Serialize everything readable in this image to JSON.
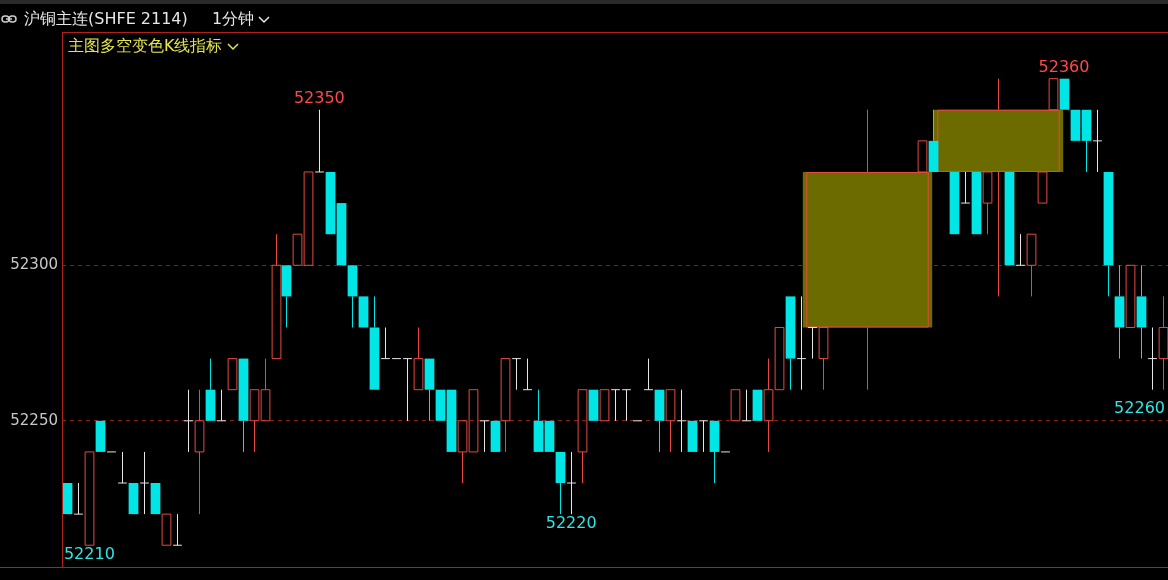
{
  "chart_data": {
    "type": "candlestick",
    "title": "沪铜主连(SHFE 2114)",
    "subtitle": "1分钟",
    "categories": [
      null,
      null,
      null,
      null,
      null,
      null,
      null,
      null,
      null,
      null,
      null,
      null,
      null,
      null,
      null,
      null,
      null,
      null,
      null,
      null,
      null,
      null,
      null,
      null,
      null,
      null,
      null,
      null,
      null,
      null,
      null,
      null,
      null,
      null,
      null,
      null,
      null,
      null,
      null,
      null,
      null,
      null,
      null,
      null,
      null,
      null,
      null,
      null,
      null,
      null,
      null,
      null,
      null,
      null,
      null,
      null,
      null,
      null,
      null,
      null,
      null,
      null,
      null,
      null,
      null,
      null,
      null,
      null,
      null,
      null,
      null,
      null,
      null,
      null,
      null,
      null,
      null,
      null,
      null,
      null,
      null,
      null,
      null,
      null,
      null,
      null,
      null,
      null,
      null,
      null,
      null,
      null,
      null,
      null,
      null,
      null,
      null,
      null,
      null,
      null,
      null
    ],
    "ohlc": [
      [
        52230,
        52230,
        52220,
        52220
      ],
      [
        52220,
        52230,
        52220,
        52220
      ],
      [
        52210,
        52240,
        52210,
        52240
      ],
      [
        52250,
        52250,
        52240,
        52240
      ],
      [
        52240,
        52240,
        52240,
        52240
      ],
      [
        52230,
        52240,
        52230,
        52230
      ],
      [
        52230,
        52230,
        52220,
        52220
      ],
      [
        52230,
        52240,
        52220,
        52230
      ],
      [
        52230,
        52230,
        52220,
        52220
      ],
      [
        52210,
        52220,
        52210,
        52220
      ],
      [
        52210,
        52220,
        52210,
        52210
      ],
      [
        52250,
        52260,
        52240,
        52250
      ],
      [
        52240,
        52260,
        52220,
        52250
      ],
      [
        52260,
        52270,
        52250,
        52250
      ],
      [
        52250,
        52260,
        52250,
        52250
      ],
      [
        52260,
        52270,
        52260,
        52270
      ],
      [
        52270,
        52270,
        52240,
        52250
      ],
      [
        52250,
        52260,
        52240,
        52260
      ],
      [
        52250,
        52270,
        52250,
        52260
      ],
      [
        52270,
        52310,
        52270,
        52300
      ],
      [
        52300,
        52300,
        52280,
        52290
      ],
      [
        52300,
        52310,
        52300,
        52310
      ],
      [
        52300,
        52330,
        52300,
        52330
      ],
      [
        52330,
        52350,
        52330,
        52330
      ],
      [
        52330,
        52330,
        52310,
        52310
      ],
      [
        52320,
        52320,
        52300,
        52300
      ],
      [
        52300,
        52300,
        52280,
        52290
      ],
      [
        52290,
        52290,
        52280,
        52280
      ],
      [
        52280,
        52290,
        52260,
        52260
      ],
      [
        52270,
        52280,
        52270,
        52270
      ],
      [
        52270,
        52270,
        52270,
        52270
      ],
      [
        52270,
        52270,
        52250,
        52270
      ],
      [
        52260,
        52280,
        52260,
        52270
      ],
      [
        52270,
        52270,
        52250,
        52260
      ],
      [
        52260,
        52260,
        52250,
        52250
      ],
      [
        52260,
        52260,
        52240,
        52240
      ],
      [
        52240,
        52250,
        52230,
        52250
      ],
      [
        52240,
        52260,
        52240,
        52260
      ],
      [
        52250,
        52250,
        52240,
        52250
      ],
      [
        52250,
        52250,
        52240,
        52240
      ],
      [
        52250,
        52270,
        52240,
        52270
      ],
      [
        52270,
        52270,
        52260,
        52270
      ],
      [
        52260,
        52270,
        52260,
        52260
      ],
      [
        52250,
        52260,
        52240,
        52240
      ],
      [
        52250,
        52250,
        52240,
        52240
      ],
      [
        52240,
        52240,
        52220,
        52230
      ],
      [
        52230,
        52240,
        52220,
        52230
      ],
      [
        52240,
        52260,
        52230,
        52260
      ],
      [
        52260,
        52260,
        52250,
        52250
      ],
      [
        52250,
        52260,
        52250,
        52260
      ],
      [
        52260,
        52260,
        52250,
        52260
      ],
      [
        52260,
        52260,
        52250,
        52260
      ],
      [
        52250,
        52250,
        52250,
        52250
      ],
      [
        52260,
        52270,
        52260,
        52260
      ],
      [
        52260,
        52260,
        52240,
        52250
      ],
      [
        52250,
        52260,
        52240,
        52260
      ],
      [
        52250,
        52260,
        52240,
        52250
      ],
      [
        52250,
        52250,
        52240,
        52240
      ],
      [
        52250,
        52250,
        52240,
        52250
      ],
      [
        52250,
        52250,
        52230,
        52240
      ],
      [
        52240,
        52240,
        52240,
        52240
      ],
      [
        52250,
        52260,
        52250,
        52260
      ],
      [
        52250,
        52260,
        52250,
        52250
      ],
      [
        52260,
        52260,
        52250,
        52250
      ],
      [
        52250,
        52270,
        52240,
        52260
      ],
      [
        52260,
        52280,
        52260,
        52280
      ],
      [
        52290,
        52290,
        52260,
        52270
      ],
      [
        52270,
        52290,
        52260,
        52270
      ],
      [
        52280,
        52280,
        52270,
        52280
      ],
      [
        52270,
        52280,
        52260,
        52280
      ],
      null,
      null,
      null,
      null,
      null,
      null,
      null,
      null,
      [
        52330,
        52340,
        52330,
        52340
      ],
      [
        52340,
        52350,
        52330,
        52330
      ],
      null,
      [
        52330,
        52330,
        52310,
        52310
      ],
      [
        52320,
        52330,
        52320,
        52320
      ],
      [
        52330,
        52330,
        52310,
        52310
      ],
      [
        52320,
        52330,
        52310,
        52330
      ],
      null,
      [
        52330,
        52330,
        52300,
        52300
      ],
      [
        52300,
        52310,
        52300,
        52300
      ],
      [
        52300,
        52310,
        52290,
        52310
      ],
      [
        52320,
        52330,
        52320,
        52330
      ],
      [
        52350,
        52360,
        52350,
        52360
      ],
      [
        52360,
        52360,
        52350,
        52350
      ],
      [
        52350,
        52350,
        52340,
        52340
      ],
      [
        52350,
        52350,
        52330,
        52340
      ],
      [
        52340,
        52350,
        52330,
        52340
      ],
      [
        52330,
        52330,
        52290,
        52300
      ],
      [
        52290,
        52300,
        52270,
        52280
      ],
      [
        52280,
        52300,
        52280,
        52300
      ],
      [
        52290,
        52300,
        52270,
        52280
      ],
      [
        52270,
        52280,
        52260,
        52270
      ],
      [
        52270,
        52290,
        52260,
        52280
      ]
    ],
    "series": [
      {
        "type": "candlestick",
        "color": "#6b6b00",
        "ohlc": [
          null,
          null,
          null,
          null,
          null,
          null,
          null,
          null,
          null,
          null,
          null,
          null,
          null,
          null,
          null,
          null,
          null,
          null,
          null,
          null,
          null,
          null,
          null,
          null,
          null,
          null,
          null,
          null,
          null,
          null,
          null,
          null,
          null,
          null,
          null,
          null,
          null,
          null,
          null,
          null,
          null,
          null,
          null,
          null,
          null,
          null,
          null,
          null,
          null,
          null,
          null,
          null,
          null,
          null,
          null,
          null,
          null,
          null,
          null,
          null,
          null,
          null,
          null,
          null,
          null,
          null,
          null,
          null,
          null,
          null,
          null,
          null,
          null,
          [
            52280,
            52350,
            52260,
            52330
          ],
          null,
          null,
          null,
          null,
          null,
          null,
          null,
          null,
          null,
          null,
          null,
          [
            52330,
            52360,
            52290,
            52350
          ],
          null,
          null,
          null,
          null,
          null,
          null,
          null,
          null,
          null,
          null,
          null,
          null,
          null,
          null,
          null
        ]
      }
    ],
    "ylim": [
      52203,
      52375
    ],
    "yticks": [
      52250,
      52300
    ],
    "grid": "y",
    "tick_labels": "y",
    "annotations": [
      "主图多空变色K线指标",
      {
        "text": "52350",
        "y": 52350
      },
      {
        "text": "52360",
        "y": 52360
      },
      {
        "text": "52220",
        "y": 52220
      },
      "52260",
      {
        "text": "52210",
        "y": 52210
      }
    ]
  }
}
